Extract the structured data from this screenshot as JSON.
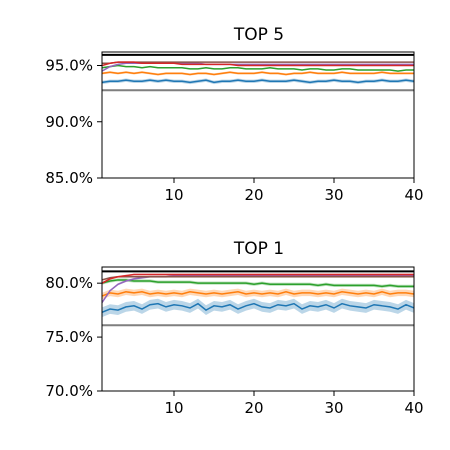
{
  "chart_data": [
    {
      "type": "line",
      "title": "TOP 5",
      "xlabel": "",
      "ylabel": "",
      "xlim": [
        1,
        40
      ],
      "ylim": [
        85.0,
        96.2
      ],
      "x_ticks": [
        10,
        20,
        30,
        40
      ],
      "y_ticks": [
        85.0,
        90.0,
        95.0
      ],
      "y_tick_labels": [
        "85.0%",
        "90.0%",
        "95.0%"
      ],
      "grid": false,
      "x": [
        1,
        2,
        3,
        4,
        5,
        6,
        7,
        8,
        9,
        10,
        11,
        12,
        13,
        14,
        15,
        16,
        17,
        18,
        19,
        20,
        21,
        22,
        23,
        24,
        25,
        26,
        27,
        28,
        29,
        30,
        31,
        32,
        33,
        34,
        35,
        36,
        37,
        38,
        39,
        40
      ],
      "hlines": [
        {
          "y": 92.8,
          "color": "#7f7f7f"
        },
        {
          "y": 95.95,
          "color": "#000000"
        }
      ],
      "series": [
        {
          "color": "#1f77b4",
          "band": 0.15,
          "values": [
            93.5,
            93.6,
            93.6,
            93.7,
            93.6,
            93.6,
            93.7,
            93.6,
            93.7,
            93.6,
            93.6,
            93.5,
            93.6,
            93.7,
            93.5,
            93.6,
            93.6,
            93.7,
            93.6,
            93.6,
            93.7,
            93.6,
            93.6,
            93.6,
            93.7,
            93.6,
            93.5,
            93.6,
            93.6,
            93.7,
            93.6,
            93.6,
            93.5,
            93.6,
            93.6,
            93.7,
            93.6,
            93.6,
            93.7,
            93.6
          ]
        },
        {
          "color": "#ff7f0e",
          "band": 0.1,
          "values": [
            94.3,
            94.4,
            94.3,
            94.4,
            94.3,
            94.4,
            94.3,
            94.2,
            94.3,
            94.3,
            94.3,
            94.2,
            94.3,
            94.3,
            94.2,
            94.3,
            94.4,
            94.3,
            94.3,
            94.3,
            94.4,
            94.3,
            94.3,
            94.2,
            94.3,
            94.3,
            94.4,
            94.3,
            94.3,
            94.3,
            94.4,
            94.3,
            94.3,
            94.3,
            94.3,
            94.4,
            94.3,
            94.3,
            94.3,
            94.3
          ]
        },
        {
          "color": "#2ca02c",
          "band": 0.05,
          "values": [
            94.8,
            94.9,
            95.0,
            94.9,
            94.9,
            94.8,
            94.9,
            94.8,
            94.8,
            94.8,
            94.8,
            94.7,
            94.7,
            94.8,
            94.7,
            94.7,
            94.8,
            94.8,
            94.7,
            94.7,
            94.7,
            94.8,
            94.7,
            94.7,
            94.7,
            94.6,
            94.7,
            94.7,
            94.6,
            94.6,
            94.7,
            94.7,
            94.6,
            94.6,
            94.6,
            94.6,
            94.6,
            94.5,
            94.6,
            94.6
          ]
        },
        {
          "color": "#9467bd",
          "band": 0.05,
          "values": [
            94.5,
            94.9,
            95.1,
            95.2,
            95.2,
            95.2,
            95.2,
            95.2,
            95.2,
            95.2,
            95.2,
            95.2,
            95.2,
            95.1,
            95.1,
            95.1,
            95.1,
            95.1,
            95.1,
            95.1,
            95.1,
            95.1,
            95.1,
            95.1,
            95.1,
            95.1,
            95.1,
            95.1,
            95.1,
            95.1,
            95.1,
            95.1,
            95.1,
            95.1,
            95.1,
            95.1,
            95.1,
            95.1,
            95.1,
            95.1
          ]
        },
        {
          "color": "#8c564b",
          "band": 0.04,
          "values": [
            95.2,
            95.2,
            95.3,
            95.3,
            95.3,
            95.3,
            95.3,
            95.3,
            95.3,
            95.3,
            95.3,
            95.3,
            95.3,
            95.3,
            95.3,
            95.3,
            95.3,
            95.3,
            95.3,
            95.3,
            95.3,
            95.3,
            95.3,
            95.3,
            95.3,
            95.3,
            95.3,
            95.3,
            95.3,
            95.3,
            95.3,
            95.3,
            95.3,
            95.3,
            95.3,
            95.3,
            95.3,
            95.3,
            95.3,
            95.3
          ]
        },
        {
          "color": "#d62728",
          "band": 0.04,
          "values": [
            95.0,
            95.2,
            95.3,
            95.3,
            95.3,
            95.2,
            95.2,
            95.2,
            95.2,
            95.2,
            95.1,
            95.1,
            95.1,
            95.1,
            95.1,
            95.1,
            95.1,
            95.0,
            95.0,
            95.0,
            95.0,
            95.0,
            95.0,
            95.0,
            95.0,
            95.0,
            95.0,
            95.0,
            95.0,
            95.0,
            95.0,
            95.0,
            95.0,
            95.0,
            95.0,
            95.0,
            95.0,
            95.0,
            95.0,
            95.0
          ]
        }
      ]
    },
    {
      "type": "line",
      "title": "TOP 1",
      "xlabel": "",
      "ylabel": "",
      "xlim": [
        1,
        40
      ],
      "ylim": [
        70.0,
        81.5
      ],
      "x_ticks": [
        10,
        20,
        30,
        40
      ],
      "y_ticks": [
        70.0,
        75.0,
        80.0
      ],
      "y_tick_labels": [
        "70.0%",
        "75.0%",
        "80.0%"
      ],
      "grid": false,
      "x": [
        1,
        2,
        3,
        4,
        5,
        6,
        7,
        8,
        9,
        10,
        11,
        12,
        13,
        14,
        15,
        16,
        17,
        18,
        19,
        20,
        21,
        22,
        23,
        24,
        25,
        26,
        27,
        28,
        29,
        30,
        31,
        32,
        33,
        34,
        35,
        36,
        37,
        38,
        39,
        40
      ],
      "hlines": [
        {
          "y": 76.1,
          "color": "#7f7f7f"
        },
        {
          "y": 81.1,
          "color": "#000000"
        }
      ],
      "series": [
        {
          "color": "#1f77b4",
          "band": 0.45,
          "values": [
            77.3,
            77.6,
            77.5,
            77.8,
            77.9,
            77.6,
            78.0,
            78.1,
            77.8,
            78.0,
            77.9,
            77.7,
            78.1,
            77.5,
            77.9,
            77.8,
            78.0,
            77.6,
            77.9,
            78.1,
            77.8,
            77.7,
            78.0,
            77.9,
            78.1,
            77.6,
            77.9,
            77.8,
            78.0,
            77.7,
            78.1,
            77.9,
            77.8,
            77.7,
            78.0,
            77.9,
            77.8,
            77.6,
            78.0,
            77.7
          ]
        },
        {
          "color": "#ff7f0e",
          "band": 0.3,
          "values": [
            78.8,
            79.1,
            79.0,
            79.2,
            79.1,
            79.2,
            79.0,
            79.1,
            79.0,
            79.1,
            79.0,
            79.2,
            79.1,
            79.0,
            79.1,
            79.0,
            79.1,
            79.2,
            79.0,
            79.1,
            79.0,
            79.1,
            79.0,
            79.2,
            79.0,
            79.1,
            79.1,
            79.0,
            79.1,
            79.0,
            79.2,
            79.1,
            79.0,
            79.1,
            79.0,
            79.2,
            79.0,
            79.1,
            79.1,
            79.0
          ]
        },
        {
          "color": "#2ca02c",
          "band": 0.15,
          "values": [
            80.0,
            80.2,
            80.3,
            80.3,
            80.2,
            80.2,
            80.2,
            80.1,
            80.1,
            80.1,
            80.1,
            80.1,
            80.0,
            80.0,
            80.0,
            80.0,
            80.0,
            80.0,
            80.0,
            79.9,
            80.0,
            79.9,
            79.9,
            79.9,
            79.9,
            79.9,
            79.9,
            79.8,
            79.9,
            79.8,
            79.8,
            79.8,
            79.8,
            79.8,
            79.8,
            79.7,
            79.8,
            79.7,
            79.7,
            79.7
          ]
        },
        {
          "color": "#9467bd",
          "band": 0.1,
          "values": [
            78.2,
            79.3,
            79.9,
            80.2,
            80.4,
            80.5,
            80.6,
            80.6,
            80.6,
            80.7,
            80.7,
            80.7,
            80.7,
            80.7,
            80.7,
            80.7,
            80.7,
            80.7,
            80.7,
            80.7,
            80.7,
            80.7,
            80.7,
            80.7,
            80.7,
            80.7,
            80.7,
            80.7,
            80.7,
            80.7,
            80.7,
            80.7,
            80.7,
            80.7,
            80.7,
            80.7,
            80.7,
            80.7,
            80.7,
            80.7
          ]
        },
        {
          "color": "#8c564b",
          "band": 0.08,
          "values": [
            80.3,
            80.5,
            80.6,
            80.6,
            80.6,
            80.6,
            80.6,
            80.6,
            80.6,
            80.6,
            80.6,
            80.6,
            80.6,
            80.6,
            80.6,
            80.6,
            80.6,
            80.6,
            80.6,
            80.6,
            80.6,
            80.6,
            80.6,
            80.6,
            80.6,
            80.6,
            80.6,
            80.6,
            80.6,
            80.6,
            80.6,
            80.6,
            80.6,
            80.6,
            80.6,
            80.6,
            80.6,
            80.6,
            80.6,
            80.6
          ]
        },
        {
          "color": "#d62728",
          "band": 0.08,
          "values": [
            80.0,
            80.4,
            80.6,
            80.7,
            80.8,
            80.8,
            80.8,
            80.8,
            80.8,
            80.8,
            80.8,
            80.8,
            80.8,
            80.8,
            80.8,
            80.8,
            80.8,
            80.8,
            80.8,
            80.8,
            80.8,
            80.8,
            80.8,
            80.8,
            80.8,
            80.8,
            80.8,
            80.8,
            80.8,
            80.8,
            80.8,
            80.8,
            80.8,
            80.8,
            80.8,
            80.8,
            80.8,
            80.8,
            80.8,
            80.8
          ]
        }
      ]
    }
  ]
}
